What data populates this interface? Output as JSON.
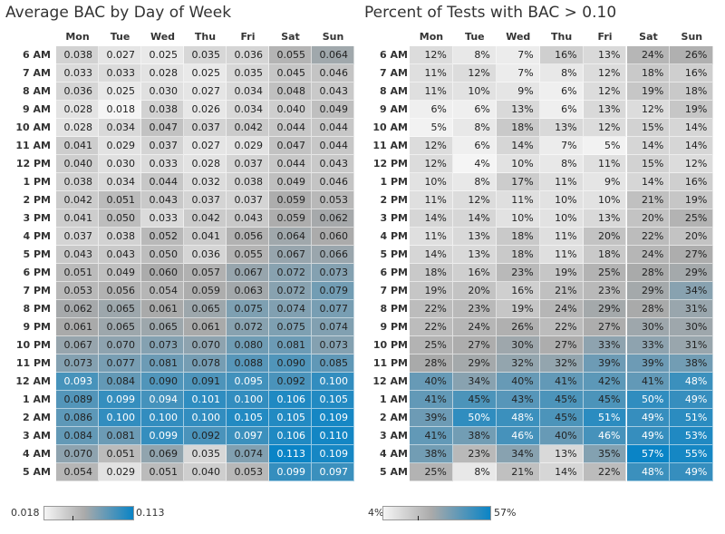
{
  "days": [
    "Mon",
    "Tue",
    "Wed",
    "Thu",
    "Fri",
    "Sat",
    "Sun"
  ],
  "hours": [
    "6 AM",
    "7 AM",
    "8 AM",
    "9 AM",
    "10 AM",
    "11 AM",
    "12 PM",
    "1 PM",
    "2 PM",
    "3 PM",
    "4 PM",
    "5 PM",
    "6 PM",
    "7 PM",
    "8 PM",
    "9 PM",
    "10 PM",
    "11 PM",
    "12 AM",
    "1 AM",
    "2 AM",
    "3 AM",
    "4 AM",
    "5 AM"
  ],
  "colors": {
    "low": "#f5f5f5",
    "mid": "#aaaaaa",
    "high": "#0a84c6"
  },
  "chart_data": [
    {
      "type": "heatmap",
      "title": "Average BAC by Day of Week",
      "x_categories": [
        "Mon",
        "Tue",
        "Wed",
        "Thu",
        "Fri",
        "Sat",
        "Sun"
      ],
      "y_categories": [
        "6 AM",
        "7 AM",
        "8 AM",
        "9 AM",
        "10 AM",
        "11 AM",
        "12 PM",
        "1 PM",
        "2 PM",
        "3 PM",
        "4 PM",
        "5 PM",
        "6 PM",
        "7 PM",
        "8 PM",
        "9 PM",
        "10 PM",
        "11 PM",
        "12 AM",
        "1 AM",
        "2 AM",
        "3 AM",
        "4 AM",
        "5 AM"
      ],
      "legend_min": "0.018",
      "legend_max": "0.113",
      "value_format": "decimal3",
      "color_range": [
        0.018,
        0.113
      ],
      "values": [
        [
          0.038,
          0.027,
          0.025,
          0.035,
          0.036,
          0.055,
          0.064
        ],
        [
          0.033,
          0.033,
          0.028,
          0.025,
          0.035,
          0.045,
          0.046
        ],
        [
          0.036,
          0.025,
          0.03,
          0.027,
          0.034,
          0.048,
          0.043
        ],
        [
          0.028,
          0.018,
          0.038,
          0.026,
          0.034,
          0.04,
          0.049
        ],
        [
          0.028,
          0.034,
          0.047,
          0.037,
          0.042,
          0.044,
          0.044
        ],
        [
          0.041,
          0.029,
          0.037,
          0.027,
          0.029,
          0.047,
          0.044
        ],
        [
          0.04,
          0.03,
          0.033,
          0.028,
          0.037,
          0.044,
          0.043
        ],
        [
          0.038,
          0.034,
          0.044,
          0.032,
          0.038,
          0.049,
          0.046
        ],
        [
          0.042,
          0.051,
          0.043,
          0.037,
          0.037,
          0.059,
          0.053
        ],
        [
          0.041,
          0.05,
          0.033,
          0.042,
          0.043,
          0.059,
          0.062
        ],
        [
          0.037,
          0.038,
          0.052,
          0.041,
          0.056,
          0.064,
          0.06
        ],
        [
          0.043,
          0.043,
          0.05,
          0.036,
          0.055,
          0.067,
          0.066
        ],
        [
          0.051,
          0.049,
          0.06,
          0.057,
          0.067,
          0.072,
          0.073
        ],
        [
          0.053,
          0.056,
          0.054,
          0.059,
          0.063,
          0.072,
          0.079
        ],
        [
          0.062,
          0.065,
          0.061,
          0.065,
          0.075,
          0.074,
          0.077
        ],
        [
          0.061,
          0.065,
          0.065,
          0.061,
          0.072,
          0.075,
          0.074
        ],
        [
          0.067,
          0.07,
          0.073,
          0.07,
          0.08,
          0.081,
          0.073
        ],
        [
          0.073,
          0.077,
          0.081,
          0.078,
          0.088,
          0.09,
          0.085
        ],
        [
          0.093,
          0.084,
          0.09,
          0.091,
          0.095,
          0.092,
          0.1
        ],
        [
          0.089,
          0.099,
          0.094,
          0.101,
          0.1,
          0.106,
          0.105
        ],
        [
          0.086,
          0.1,
          0.1,
          0.1,
          0.105,
          0.105,
          0.109
        ],
        [
          0.084,
          0.081,
          0.099,
          0.092,
          0.097,
          0.106,
          0.11
        ],
        [
          0.07,
          0.051,
          0.069,
          0.035,
          0.074,
          0.113,
          0.109
        ],
        [
          0.054,
          0.029,
          0.051,
          0.04,
          0.053,
          0.099,
          0.097
        ]
      ]
    },
    {
      "type": "heatmap",
      "title": "Percent of Tests with BAC > 0.10",
      "x_categories": [
        "Mon",
        "Tue",
        "Wed",
        "Thu",
        "Fri",
        "Sat",
        "Sun"
      ],
      "y_categories": [
        "6 AM",
        "7 AM",
        "8 AM",
        "9 AM",
        "10 AM",
        "11 AM",
        "12 PM",
        "1 PM",
        "2 PM",
        "3 PM",
        "4 PM",
        "5 PM",
        "6 PM",
        "7 PM",
        "8 PM",
        "9 PM",
        "10 PM",
        "11 PM",
        "12 AM",
        "1 AM",
        "2 AM",
        "3 AM",
        "4 AM",
        "5 AM"
      ],
      "legend_min": "4%",
      "legend_max": "57%",
      "value_format": "percent",
      "color_range": [
        4,
        57
      ],
      "values": [
        [
          12,
          8,
          7,
          16,
          13,
          24,
          26
        ],
        [
          11,
          12,
          7,
          8,
          12,
          18,
          16
        ],
        [
          11,
          10,
          9,
          6,
          12,
          19,
          18
        ],
        [
          6,
          6,
          13,
          6,
          13,
          12,
          19
        ],
        [
          5,
          8,
          18,
          13,
          12,
          15,
          14
        ],
        [
          12,
          6,
          14,
          7,
          5,
          14,
          14
        ],
        [
          12,
          4,
          10,
          8,
          11,
          15,
          12
        ],
        [
          10,
          8,
          17,
          11,
          9,
          14,
          16
        ],
        [
          11,
          12,
          11,
          10,
          10,
          21,
          19
        ],
        [
          14,
          14,
          10,
          10,
          13,
          20,
          25
        ],
        [
          11,
          13,
          18,
          11,
          20,
          22,
          20
        ],
        [
          14,
          13,
          18,
          11,
          18,
          24,
          27
        ],
        [
          18,
          16,
          23,
          19,
          25,
          28,
          29
        ],
        [
          19,
          20,
          16,
          21,
          23,
          29,
          34
        ],
        [
          22,
          23,
          19,
          24,
          29,
          28,
          31
        ],
        [
          22,
          24,
          26,
          22,
          27,
          30,
          30
        ],
        [
          25,
          27,
          30,
          27,
          33,
          33,
          31
        ],
        [
          28,
          29,
          32,
          32,
          39,
          39,
          38
        ],
        [
          40,
          34,
          40,
          41,
          42,
          41,
          48
        ],
        [
          41,
          45,
          43,
          45,
          45,
          50,
          49
        ],
        [
          39,
          50,
          48,
          45,
          51,
          49,
          51
        ],
        [
          41,
          38,
          46,
          40,
          46,
          49,
          53
        ],
        [
          38,
          23,
          34,
          13,
          35,
          57,
          55
        ],
        [
          25,
          8,
          21,
          14,
          22,
          48,
          49
        ]
      ]
    }
  ]
}
